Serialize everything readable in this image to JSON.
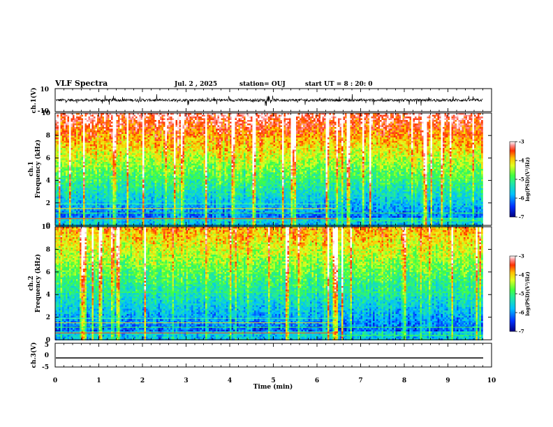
{
  "header": {
    "title": "VLF Spectra",
    "date": "Jul. 2 , 2025",
    "station": "station= OUJ",
    "start": "start UT = 8 : 20: 0"
  },
  "chart_data": [
    {
      "type": "line",
      "panel": "waveform-ch1",
      "ylabel": "ch.1(V)",
      "ylim": [
        -10,
        10
      ],
      "yticks": [
        "10",
        "-10"
      ],
      "xlim": [
        0,
        10
      ],
      "series": [
        {
          "values_description_mean": 0.0,
          "amplitude_range": [
            -3,
            3
          ]
        }
      ]
    },
    {
      "type": "heatmap",
      "panel": "spectrogram-ch1",
      "ylabel": "ch.1 Frequency (kHz)",
      "ylim": [
        0,
        10
      ],
      "yticks": [
        "0",
        "2",
        "4",
        "6",
        "8",
        "10"
      ],
      "xlim": [
        0,
        10
      ],
      "data_end_min": 9.8,
      "band_change_min": 6.45,
      "colorbar": {
        "label": "log(PSD)(V²/Hz)",
        "range": [
          -7,
          -3
        ],
        "ticks": [
          "-3",
          "-4",
          "-5",
          "-6",
          "-7"
        ]
      }
    },
    {
      "type": "heatmap",
      "panel": "spectrogram-ch2",
      "ylabel": "ch.2 Frequency (kHz)",
      "ylim": [
        0,
        10
      ],
      "yticks": [
        "0",
        "2",
        "4",
        "6",
        "8",
        "10"
      ],
      "xlim": [
        0,
        10
      ],
      "data_end_min": 9.8,
      "band_change_min": 6.45,
      "colorbar": {
        "label": "log(PSD)(V²/Hz)",
        "range": [
          -7,
          -3
        ],
        "ticks": [
          "-3",
          "-4",
          "-5",
          "-6",
          "-7"
        ]
      }
    },
    {
      "type": "line",
      "panel": "waveform-ch3",
      "ylabel": "ch.3(V)",
      "ylim": [
        -5,
        5
      ],
      "yticks": [
        "5",
        "0",
        "-5"
      ],
      "xlim": [
        0,
        10
      ],
      "series": [
        {
          "constant_value": -1.8
        }
      ]
    }
  ],
  "x_axis": {
    "label": "Time (min)",
    "ticks": [
      "0",
      "1",
      "2",
      "3",
      "4",
      "5",
      "6",
      "7",
      "8",
      "9",
      "10"
    ]
  },
  "colors": {
    "background": "#ffffff",
    "axes": "#000000",
    "colormap": [
      "#000090",
      "#0040ff",
      "#00c0ff",
      "#20e0a0",
      "#40ff40",
      "#d0ff20",
      "#ffd000",
      "#ff7000",
      "#ff2000",
      "#ffffff"
    ]
  }
}
